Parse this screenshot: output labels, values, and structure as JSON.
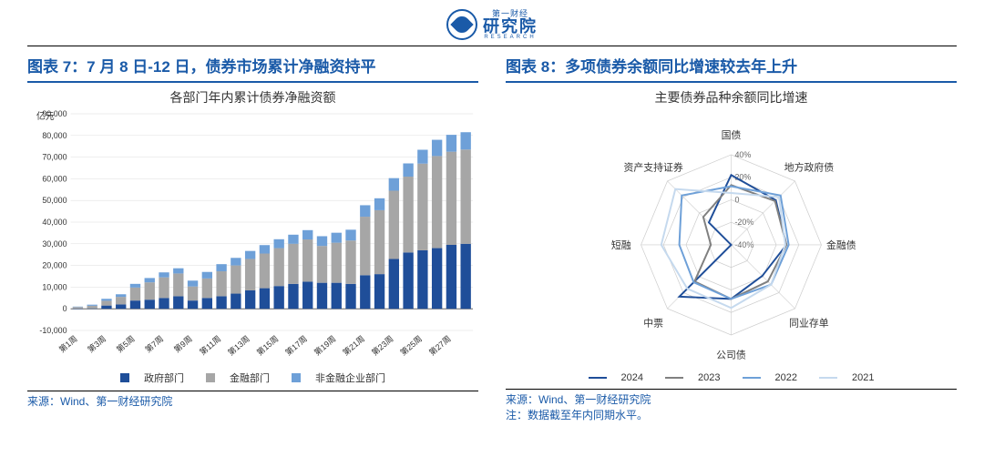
{
  "logo": {
    "small_text": "第一财经",
    "big_text": "研究院",
    "en_text": "RESEARCH"
  },
  "chart7": {
    "title": "图表 7：7 月 8 日-12 日，债券市场累计净融资持平",
    "subtitle": "各部门年内累计债券净融资额",
    "type": "stacked_bar",
    "y_unit": "亿元",
    "y_ticks": [
      -10000,
      0,
      10000,
      20000,
      30000,
      40000,
      50000,
      60000,
      70000,
      80000,
      90000
    ],
    "y_tick_labels": [
      "-10,000",
      "0",
      "10,000",
      "20,000",
      "30,000",
      "40,000",
      "50,000",
      "60,000",
      "70,000",
      "80,000",
      "90,000"
    ],
    "ylim": [
      -10000,
      90000
    ],
    "x_labels": [
      "第1周",
      "第3周",
      "第5周",
      "第7周",
      "第9周",
      "第11周",
      "第13周",
      "第15周",
      "第17周",
      "第19周",
      "第21周",
      "第23周",
      "第25周",
      "第27周"
    ],
    "series": [
      {
        "name": "政府部门",
        "color": "#1f4e99",
        "values": [
          -200,
          200,
          1500,
          2000,
          3800,
          4200,
          5000,
          5800,
          3800,
          5000,
          5800,
          7000,
          8500,
          9500,
          10500,
          11500,
          12500,
          12000,
          12000,
          11500,
          15500,
          16000,
          23000,
          26000,
          27000,
          28000,
          29500,
          30000
        ]
      },
      {
        "name": "金融部门",
        "color": "#a6a6a6",
        "values": [
          800,
          1200,
          2200,
          3500,
          6000,
          8000,
          9500,
          10500,
          6500,
          9000,
          11500,
          13000,
          14500,
          16000,
          17500,
          18500,
          19500,
          17000,
          18500,
          20000,
          27000,
          29500,
          31500,
          35000,
          40000,
          42500,
          43000,
          43500
        ]
      },
      {
        "name": "非金融企业部门",
        "color": "#6ea0d8",
        "values": [
          200,
          500,
          900,
          1200,
          1700,
          2000,
          2300,
          2400,
          2700,
          3000,
          3300,
          3500,
          3700,
          3900,
          4100,
          4200,
          4300,
          4500,
          4600,
          5000,
          5300,
          5500,
          5800,
          6100,
          6400,
          7500,
          7800,
          8000
        ]
      }
    ],
    "n_bars": 28,
    "legend_labels": [
      "政府部门",
      "金融部门",
      "非金融企业部门"
    ],
    "legend_colors": [
      "#1f4e99",
      "#a6a6a6",
      "#6ea0d8"
    ],
    "background_color": "#ffffff",
    "label_fontsize": 10,
    "source": "来源：Wind、第一财经研究院"
  },
  "chart8": {
    "title": "图表 8：多项债券余额同比增速较去年上升",
    "subtitle": "主要债券品种余额同比增速",
    "type": "radar",
    "axes": [
      "国债",
      "地方政府债",
      "金融债",
      "同业存单",
      "公司债",
      "中票",
      "短融",
      "资产支持证券"
    ],
    "rings": [
      "40%",
      "20%",
      "0",
      "-20%",
      "-40%"
    ],
    "ring_values": [
      40,
      20,
      0,
      -20,
      -40
    ],
    "rlim": [
      -40,
      40
    ],
    "series": [
      {
        "name": "2024",
        "color": "#1f4e99",
        "width": 2,
        "values": [
          22,
          16,
          9,
          -1,
          8,
          25,
          -40,
          -12
        ]
      },
      {
        "name": "2023",
        "color": "#808080",
        "width": 2,
        "values": [
          13,
          15,
          9,
          6,
          8,
          6,
          -22,
          -5
        ]
      },
      {
        "name": "2022",
        "color": "#6ea0d8",
        "width": 2,
        "values": [
          12,
          22,
          11,
          10,
          8,
          7,
          6,
          22
        ]
      },
      {
        "name": "2021",
        "color": "#c5d9ee",
        "width": 2,
        "values": [
          6,
          20,
          8,
          10,
          16,
          15,
          22,
          30
        ]
      }
    ],
    "legend_labels": [
      "2024",
      "2023",
      "2022",
      "2021"
    ],
    "legend_colors": [
      "#1f4e99",
      "#808080",
      "#6ea0d8",
      "#c5d9ee"
    ],
    "background_color": "#ffffff",
    "label_fontsize": 11,
    "source": "来源：Wind、第一财经研究院",
    "note": "注：数据截至年内同期水平。"
  }
}
